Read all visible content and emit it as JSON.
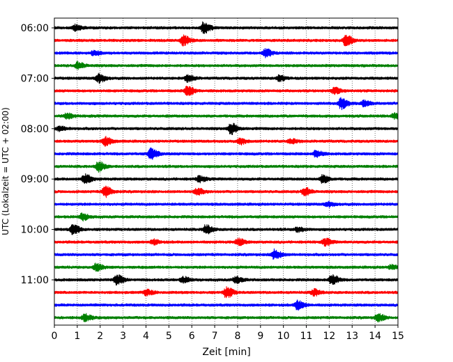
{
  "chart_data": {
    "type": "line",
    "subtype": "helicorder-seismogram",
    "xlabel": "Zeit  [min]",
    "ylabel": "UTC (Lokalzeit = UTC + 02:00)",
    "xlim": [
      0,
      15
    ],
    "x_ticks": [
      "0",
      "1",
      "2",
      "3",
      "4",
      "5",
      "6",
      "7",
      "8",
      "9",
      "10",
      "11",
      "12",
      "13",
      "14",
      "15"
    ],
    "y_tick_labels": [
      "06:00",
      "07:00",
      "08:00",
      "09:00",
      "10:00",
      "11:00"
    ],
    "y_tick_label_rows": [
      0,
      4,
      8,
      12,
      16,
      20
    ],
    "grid": "vertical dotted",
    "colors_cycle": [
      "#000000",
      "#ff0000",
      "#0000ff",
      "#008000"
    ],
    "rows": [
      {
        "start": "06:00",
        "color": "#000000",
        "bursts": [
          [
            0.9,
            0.5
          ],
          [
            6.5,
            1.0
          ]
        ]
      },
      {
        "start": "06:15",
        "color": "#ff0000",
        "bursts": [
          [
            5.6,
            0.9
          ],
          [
            12.7,
            1.0
          ]
        ]
      },
      {
        "start": "06:30",
        "color": "#0000ff",
        "bursts": [
          [
            1.7,
            0.4
          ],
          [
            9.2,
            0.7
          ]
        ]
      },
      {
        "start": "06:45",
        "color": "#008000",
        "bursts": [
          [
            1.0,
            0.6
          ]
        ]
      },
      {
        "start": "07:00",
        "color": "#000000",
        "bursts": [
          [
            1.9,
            0.8
          ],
          [
            5.8,
            0.6
          ],
          [
            9.8,
            0.5
          ]
        ]
      },
      {
        "start": "07:15",
        "color": "#ff0000",
        "bursts": [
          [
            5.8,
            0.9
          ],
          [
            12.2,
            0.6
          ]
        ]
      },
      {
        "start": "07:30",
        "color": "#0000ff",
        "bursts": [
          [
            12.5,
            1.0
          ],
          [
            13.5,
            0.5
          ]
        ]
      },
      {
        "start": "07:45",
        "color": "#008000",
        "bursts": [
          [
            0.5,
            0.5
          ],
          [
            14.8,
            0.5
          ]
        ]
      },
      {
        "start": "08:00",
        "color": "#000000",
        "bursts": [
          [
            0.2,
            0.4
          ],
          [
            7.7,
            1.0
          ]
        ]
      },
      {
        "start": "08:15",
        "color": "#ff0000",
        "bursts": [
          [
            2.2,
            0.8
          ],
          [
            8.1,
            0.5
          ],
          [
            10.3,
            0.4
          ]
        ]
      },
      {
        "start": "08:30",
        "color": "#0000ff",
        "bursts": [
          [
            4.2,
            1.0
          ],
          [
            11.4,
            0.6
          ]
        ]
      },
      {
        "start": "08:45",
        "color": "#008000",
        "bursts": [
          [
            1.9,
            0.9
          ]
        ]
      },
      {
        "start": "09:00",
        "color": "#000000",
        "bursts": [
          [
            1.3,
            0.9
          ],
          [
            6.3,
            0.5
          ],
          [
            11.7,
            0.7
          ]
        ]
      },
      {
        "start": "09:15",
        "color": "#ff0000",
        "bursts": [
          [
            2.2,
            1.0
          ],
          [
            6.2,
            0.6
          ],
          [
            10.9,
            0.7
          ]
        ]
      },
      {
        "start": "09:30",
        "color": "#0000ff",
        "bursts": [
          [
            11.9,
            0.4
          ]
        ]
      },
      {
        "start": "09:45",
        "color": "#008000",
        "bursts": [
          [
            1.2,
            0.6
          ]
        ]
      },
      {
        "start": "10:00",
        "color": "#000000",
        "bursts": [
          [
            0.8,
            0.9
          ],
          [
            6.6,
            0.8
          ],
          [
            10.6,
            0.4
          ]
        ]
      },
      {
        "start": "10:15",
        "color": "#ff0000",
        "bursts": [
          [
            4.3,
            0.4
          ],
          [
            8.0,
            0.6
          ],
          [
            11.8,
            0.6
          ]
        ]
      },
      {
        "start": "10:30",
        "color": "#0000ff",
        "bursts": [
          [
            9.6,
            0.9
          ]
        ]
      },
      {
        "start": "10:45",
        "color": "#008000",
        "bursts": [
          [
            1.8,
            0.6
          ],
          [
            14.7,
            0.4
          ]
        ]
      },
      {
        "start": "11:00",
        "color": "#000000",
        "bursts": [
          [
            2.7,
            0.9
          ],
          [
            5.6,
            0.5
          ],
          [
            7.9,
            0.6
          ],
          [
            12.1,
            0.9
          ]
        ]
      },
      {
        "start": "11:15",
        "color": "#ff0000",
        "bursts": [
          [
            4.0,
            0.5
          ],
          [
            7.5,
            1.0
          ],
          [
            11.3,
            0.6
          ]
        ]
      },
      {
        "start": "11:30",
        "color": "#0000ff",
        "bursts": [
          [
            10.6,
            0.9
          ]
        ]
      },
      {
        "start": "11:45",
        "color": "#008000",
        "bursts": [
          [
            1.3,
            0.6
          ],
          [
            14.1,
            0.7
          ]
        ]
      }
    ]
  }
}
